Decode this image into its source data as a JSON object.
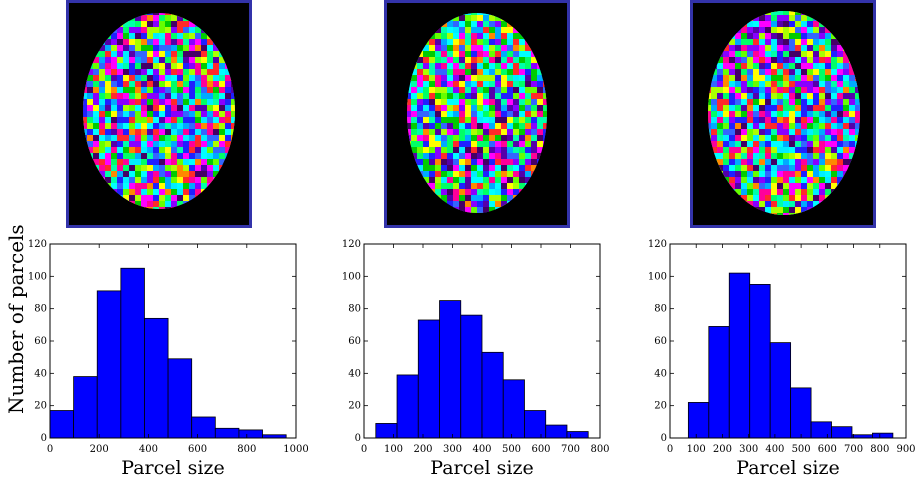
{
  "shared": {
    "ylabel": "Number of parcels"
  },
  "colors": {
    "bar_fill": "#0000ff",
    "bar_edge": "#000000",
    "frame": "#3333aa"
  },
  "chart_data": [
    {
      "type": "bar",
      "xlabel": "Parcel size",
      "ylabel": "Number of parcels",
      "xlim": [
        0,
        1000
      ],
      "ylim": [
        0,
        120
      ],
      "xticks": [
        "0",
        "200",
        "400",
        "600",
        "800",
        "1000"
      ],
      "yticks": [
        "0",
        "20",
        "40",
        "60",
        "80",
        "100",
        "120"
      ],
      "bin_edges": [
        0,
        96,
        192,
        288,
        384,
        480,
        576,
        672,
        768,
        864,
        960
      ],
      "values": [
        17,
        38,
        91,
        105,
        74,
        49,
        13,
        6,
        5,
        2
      ]
    },
    {
      "type": "bar",
      "xlabel": "Parcel size",
      "ylabel": "",
      "xlim": [
        0,
        800
      ],
      "ylim": [
        0,
        120
      ],
      "xticks": [
        "0",
        "100",
        "200",
        "300",
        "400",
        "500",
        "600",
        "700",
        "800"
      ],
      "yticks": [
        "0",
        "20",
        "40",
        "60",
        "80",
        "100",
        "120"
      ],
      "bin_edges": [
        40,
        112,
        184,
        256,
        328,
        400,
        472,
        544,
        616,
        688,
        760
      ],
      "values": [
        9,
        39,
        73,
        85,
        76,
        53,
        36,
        17,
        8,
        4
      ]
    },
    {
      "type": "bar",
      "xlabel": "Parcel size",
      "ylabel": "",
      "xlim": [
        0,
        900
      ],
      "ylim": [
        0,
        120
      ],
      "xticks": [
        "0",
        "100",
        "200",
        "300",
        "400",
        "500",
        "600",
        "700",
        "800",
        "900"
      ],
      "yticks": [
        "0",
        "20",
        "40",
        "60",
        "80",
        "100",
        "120"
      ],
      "bin_edges": [
        70,
        148,
        226,
        304,
        382,
        460,
        538,
        616,
        694,
        772,
        850
      ],
      "values": [
        22,
        69,
        102,
        95,
        59,
        31,
        10,
        7,
        2,
        3
      ]
    }
  ]
}
